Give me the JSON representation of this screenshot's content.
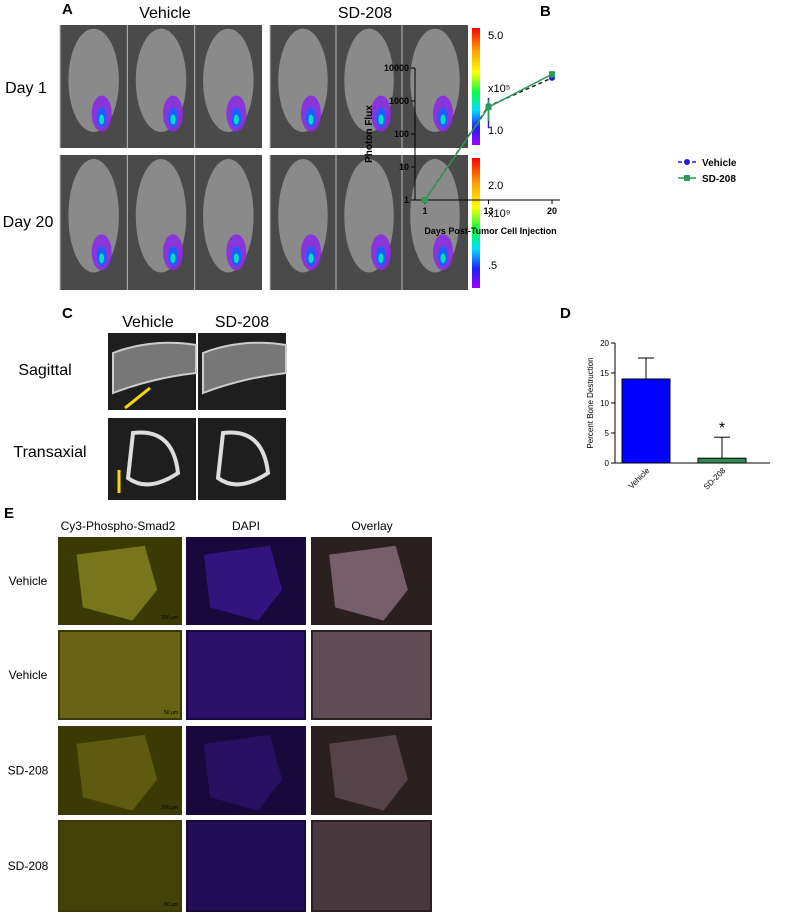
{
  "panel_a": {
    "label": "A",
    "columns": [
      "Vehicle",
      "SD-208"
    ],
    "rows": [
      "Day 1",
      "Day 20"
    ],
    "colorbars": [
      [
        "5.0",
        "x10⁵",
        "1.0"
      ],
      [
        "2.0",
        "x10⁹",
        ".5"
      ]
    ]
  },
  "panel_b": {
    "label": "B"
  },
  "panel_c": {
    "label": "C",
    "columns": [
      "Vehicle",
      "SD-208"
    ],
    "rows": [
      "Sagittal",
      "Transaxial"
    ]
  },
  "panel_d": {
    "label": "D"
  },
  "panel_e": {
    "label": "E",
    "columns": [
      "Cy3-Phospho-Smad2",
      "DAPI",
      "Overlay"
    ],
    "rows": [
      "Vehicle",
      "Vehicle",
      "SD-208",
      "SD-208"
    ],
    "scale_bars": [
      "200 µm",
      "50 µm",
      "200 µm",
      "50 µm"
    ]
  },
  "chart_data": [
    {
      "type": "line",
      "categories": [
        "1",
        "13",
        "20"
      ],
      "x_label": "Days Post-Tumor Cell Injection",
      "y_label": "Photon Flux",
      "yscale": "log",
      "ylim": [
        1,
        10000
      ],
      "yticks": [
        1,
        10,
        100,
        1000,
        10000
      ],
      "legend": "lower right",
      "series": [
        {
          "name": "Vehicle",
          "color": "#1f1fd0",
          "dashed": true,
          "marker": "circle",
          "values": [
            1,
            700,
            5000
          ],
          "errors": [
            0,
            550,
            700
          ]
        },
        {
          "name": "SD-208",
          "color": "#2e9a5c",
          "dashed": false,
          "marker": "square",
          "values": [
            1,
            650,
            6500
          ],
          "errors": [
            0,
            400,
            1500
          ]
        }
      ]
    },
    {
      "type": "bar",
      "categories": [
        "Vehicle",
        "SD-208"
      ],
      "y_label": "Percent Bone Destruction",
      "ylim": [
        0,
        20
      ],
      "yticks": [
        0,
        5,
        10,
        15,
        20
      ],
      "values": [
        14,
        0.8
      ],
      "errors": [
        3.5,
        3.5
      ],
      "colors": [
        "#0000ff",
        "#2e8b57"
      ],
      "annotation": "*"
    }
  ]
}
